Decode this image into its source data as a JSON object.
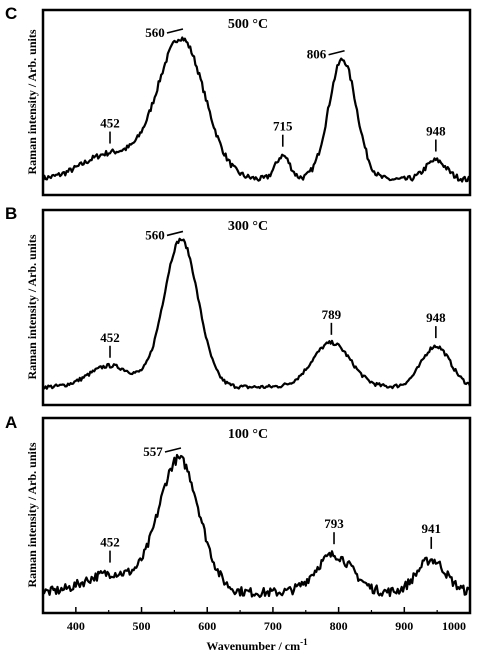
{
  "chart_data": {
    "type": "line",
    "xlabel": "Wavenumber / cm",
    "xlabel_sup": "-1",
    "ylabel": "Raman intensity / Arb. units",
    "xlim": [
      350,
      1000
    ],
    "xticks": [
      "400",
      "500",
      "600",
      "700",
      "800",
      "900",
      "1000"
    ],
    "xtick_values": [
      400,
      500,
      600,
      700,
      800,
      900,
      1000
    ],
    "grid": false,
    "panels": [
      {
        "letter": "C",
        "temperature": "500 °C",
        "ylim": [
          0,
          1.0
        ],
        "peaks": [
          {
            "label": "452",
            "x": 452,
            "h": 0.16,
            "w": 42
          },
          {
            "label": "560",
            "x": 560,
            "h": 0.88,
            "w": 36
          },
          {
            "label": "715",
            "x": 715,
            "h": 0.15,
            "w": 11
          },
          {
            "label": "806",
            "x": 806,
            "h": 0.75,
            "w": 21
          },
          {
            "label": "948",
            "x": 948,
            "h": 0.12,
            "w": 16
          }
        ],
        "baseline": 0.04,
        "noise": 0.018
      },
      {
        "letter": "B",
        "temperature": "300 °C",
        "ylim": [
          0,
          1.0
        ],
        "peaks": [
          {
            "label": "452",
            "x": 452,
            "h": 0.13,
            "w": 32
          },
          {
            "label": "560",
            "x": 560,
            "h": 0.9,
            "w": 26
          },
          {
            "label": "789",
            "x": 789,
            "h": 0.27,
            "w": 29
          },
          {
            "label": "948",
            "x": 948,
            "h": 0.25,
            "w": 22
          }
        ],
        "baseline": 0.03,
        "noise": 0.012
      },
      {
        "letter": "A",
        "temperature": "100 °C",
        "ylim": [
          0,
          1.0
        ],
        "peaks": [
          {
            "label": "452",
            "x": 452,
            "h": 0.12,
            "w": 38
          },
          {
            "label": "557",
            "x": 557,
            "h": 0.85,
            "w": 31
          },
          {
            "label": "793",
            "x": 793,
            "h": 0.24,
            "w": 28
          },
          {
            "label": "941",
            "x": 941,
            "h": 0.21,
            "w": 22
          }
        ],
        "baseline": 0.06,
        "noise": 0.03
      }
    ]
  }
}
